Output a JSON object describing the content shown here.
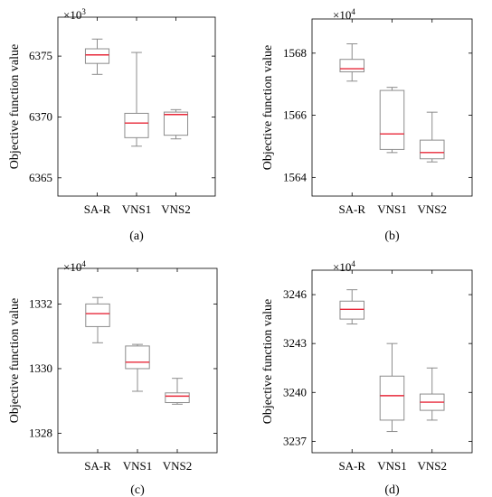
{
  "chart_data": [
    {
      "type": "box",
      "panel_label": "(a)",
      "ylabel": "Objective function value",
      "multiplier": "×10",
      "multiplier_exp": "3",
      "categories": [
        "SA-R",
        "VNS1",
        "VNS2"
      ],
      "ylim": [
        6363.5,
        6378.2
      ],
      "yticks": [
        6365,
        6370,
        6375
      ],
      "ytick_labels": [
        "6365",
        "6370",
        "6375"
      ],
      "boxes": [
        {
          "name": "SA-R",
          "min": 6373.5,
          "q1": 6374.4,
          "median": 6375.1,
          "q3": 6375.6,
          "max": 6376.4
        },
        {
          "name": "VNS1",
          "min": 6367.6,
          "q1": 6368.3,
          "median": 6369.5,
          "q3": 6370.3,
          "max": 6375.3
        },
        {
          "name": "VNS2",
          "min": 6368.2,
          "q1": 6368.5,
          "median": 6370.2,
          "q3": 6370.4,
          "max": 6370.6
        }
      ]
    },
    {
      "type": "box",
      "panel_label": "(b)",
      "ylabel": "Objective function value",
      "multiplier": "×10",
      "multiplier_exp": "4",
      "categories": [
        "SA-R",
        "VNS1",
        "VNS2"
      ],
      "ylim": [
        1563.4,
        1569.1
      ],
      "yticks": [
        1564,
        1566,
        1568
      ],
      "ytick_labels": [
        "1564",
        "1566",
        "1568"
      ],
      "boxes": [
        {
          "name": "SA-R",
          "min": 1567.1,
          "q1": 1567.4,
          "median": 1567.5,
          "q3": 1567.8,
          "max": 1568.3
        },
        {
          "name": "VNS1",
          "min": 1564.8,
          "q1": 1564.9,
          "median": 1565.4,
          "q3": 1566.8,
          "max": 1566.9
        },
        {
          "name": "VNS2",
          "min": 1564.5,
          "q1": 1564.6,
          "median": 1564.8,
          "q3": 1565.2,
          "max": 1566.1
        }
      ]
    },
    {
      "type": "box",
      "panel_label": "(c)",
      "ylabel": "Objective function value",
      "multiplier": "×10",
      "multiplier_exp": "4",
      "categories": [
        "SA-R",
        "VNS1",
        "VNS2"
      ],
      "ylim": [
        1327.4,
        1333.1
      ],
      "yticks": [
        1328,
        1330,
        1332
      ],
      "ytick_labels": [
        "1328",
        "1330",
        "1332"
      ],
      "boxes": [
        {
          "name": "SA-R",
          "min": 1330.8,
          "q1": 1331.3,
          "median": 1331.7,
          "q3": 1332.0,
          "max": 1332.2
        },
        {
          "name": "VNS1",
          "min": 1329.3,
          "q1": 1330.0,
          "median": 1330.2,
          "q3": 1330.7,
          "max": 1330.75
        },
        {
          "name": "VNS2",
          "min": 1328.9,
          "q1": 1328.95,
          "median": 1329.15,
          "q3": 1329.25,
          "max": 1329.7
        }
      ]
    },
    {
      "type": "box",
      "panel_label": "(d)",
      "ylabel": "Objective function value",
      "multiplier": "×10",
      "multiplier_exp": "4",
      "categories": [
        "SA-R",
        "VNS1",
        "VNS2"
      ],
      "ylim": [
        3236.3,
        3247.5
      ],
      "yticks": [
        3237,
        3240,
        3243,
        3246
      ],
      "ytick_labels": [
        "3237",
        "3240",
        "3243",
        "3246"
      ],
      "boxes": [
        {
          "name": "SA-R",
          "min": 3244.2,
          "q1": 3244.5,
          "median": 3245.1,
          "q3": 3245.6,
          "max": 3246.3
        },
        {
          "name": "VNS1",
          "min": 3237.6,
          "q1": 3238.3,
          "median": 3239.8,
          "q3": 3241.0,
          "max": 3243.0
        },
        {
          "name": "VNS2",
          "min": 3238.3,
          "q1": 3238.9,
          "median": 3239.4,
          "q3": 3239.9,
          "max": 3241.5
        }
      ]
    }
  ],
  "colors": {
    "box": "#8c8c8c",
    "median": "#e8293a",
    "axis": "#000000"
  }
}
